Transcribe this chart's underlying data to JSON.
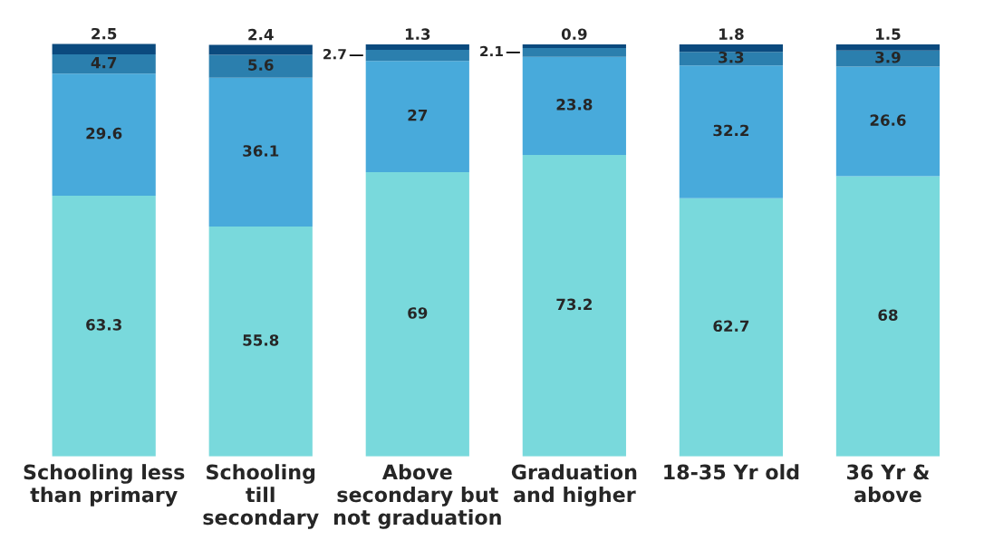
{
  "chart_data": {
    "type": "bar",
    "stacked": true,
    "data_labels": true,
    "categories": [
      "Schooling less\nthan primary",
      "Schooling\ntill\nsecondary",
      "Above\nsecondary but\nnot graduation",
      "Graduation\nand higher",
      "18-35 Yr old",
      "36 Yr &\nabove"
    ],
    "series": [
      {
        "color": "#79d9dc",
        "values": [
          63.3,
          55.8,
          69,
          73.2,
          62.7,
          68
        ]
      },
      {
        "color": "#48aadb",
        "values": [
          29.6,
          36.1,
          27,
          23.8,
          32.2,
          26.6
        ]
      },
      {
        "color": "#2b7fae",
        "values": [
          4.7,
          5.6,
          2.7,
          2.1,
          3.3,
          3.9
        ]
      },
      {
        "color": "#0b4a7e",
        "values": [
          2.5,
          2.4,
          1.3,
          0.9,
          1.8,
          1.5
        ]
      }
    ],
    "tick_labels": "x"
  }
}
